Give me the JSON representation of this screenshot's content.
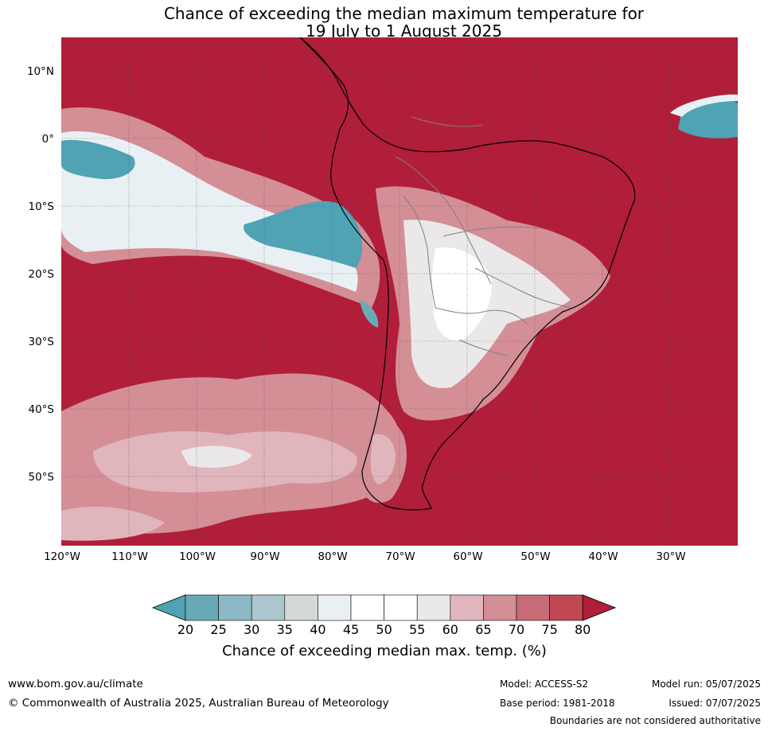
{
  "title": {
    "line1": "Chance of exceeding the median maximum temperature for",
    "line2": "19 July to 1 August 2025"
  },
  "latitude_labels": [
    "10°N",
    "0°",
    "10°S",
    "20°S",
    "30°S",
    "40°S",
    "50°S"
  ],
  "longitude_labels": [
    "120°W",
    "110°W",
    "100°W",
    "90°W",
    "80°W",
    "70°W",
    "60°W",
    "50°W",
    "40°W",
    "30°W"
  ],
  "colorbar": {
    "ticks": [
      "20",
      "25",
      "30",
      "35",
      "40",
      "45",
      "50",
      "55",
      "60",
      "65",
      "70",
      "75",
      "80"
    ],
    "colors": [
      "#4fa3b3",
      "#6aaab6",
      "#8db9c6",
      "#adc6cd",
      "#d4d8d9",
      "#e9f0f3",
      "#ffffff",
      "#ffffff",
      "#ebe8e9",
      "#e0b5bb",
      "#d48e96",
      "#c76c77",
      "#c04855",
      "#b01e3a"
    ],
    "title": "Chance of exceeding median max. temp. (%)"
  },
  "footer": {
    "url": "www.bom.gov.au/climate",
    "copyright": "© Commonwealth of Australia 2025, Australian Bureau of Meteorology",
    "model": "Model: ACCESS-S2",
    "base_period": "Base period: 1981-2018",
    "model_run": "Model run: 05/07/2025",
    "issued": "Issued: 07/07/2025",
    "disclaimer": "Boundaries are not considered authoritative"
  }
}
